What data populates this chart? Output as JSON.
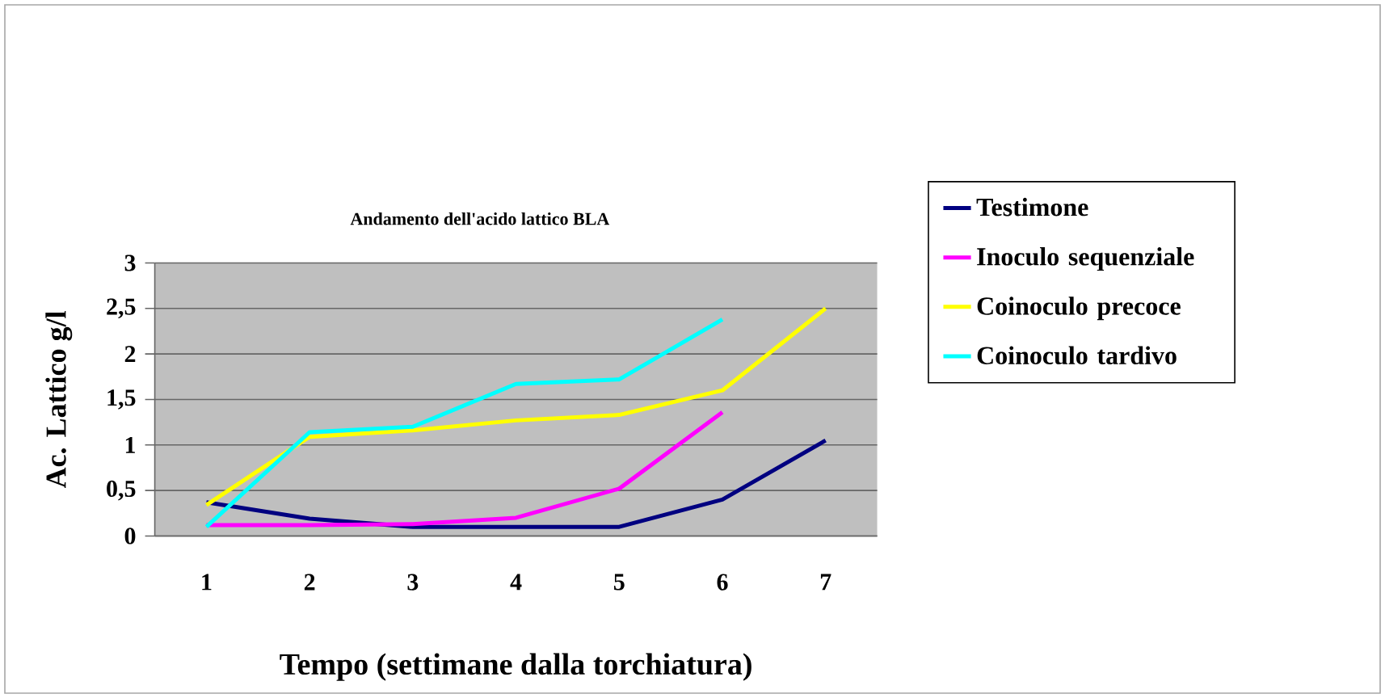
{
  "chart_data": {
    "type": "line",
    "title": "Andamento dell'acido lattico BLA",
    "xlabel": "Tempo (settimane dalla torchiatura)",
    "ylabel": "Ac. Lattico g/l",
    "categories": [
      "1",
      "2",
      "3",
      "4",
      "5",
      "6",
      "7"
    ],
    "ylim": [
      0,
      3
    ],
    "yticks": [
      0,
      {
        "value": 0.5,
        "label": "0,5"
      },
      1,
      {
        "value": 1.5,
        "label": "1,5"
      },
      2,
      {
        "value": 2.5,
        "label": "2,5"
      },
      3
    ],
    "grid": "y",
    "legend": "right",
    "marker": "none",
    "line_style": "solid",
    "series": [
      {
        "name": "Testimone",
        "color": "#000080",
        "values": [
          0.37,
          0.19,
          0.1,
          0.1,
          0.1,
          0.4,
          1.05
        ]
      },
      {
        "name": "Inoculo sequenziale",
        "color": "#ff00ff",
        "values": [
          0.12,
          0.12,
          0.13,
          0.2,
          0.52,
          1.36,
          null
        ]
      },
      {
        "name": "Coinoculo precoce",
        "color": "#ffff00",
        "values": [
          0.34,
          1.09,
          1.16,
          1.27,
          1.33,
          1.6,
          2.5
        ]
      },
      {
        "name": "Coinoculo tardivo",
        "color": "#00ffff",
        "values": [
          0.1,
          1.14,
          1.2,
          1.67,
          1.72,
          2.38,
          null
        ]
      }
    ]
  }
}
